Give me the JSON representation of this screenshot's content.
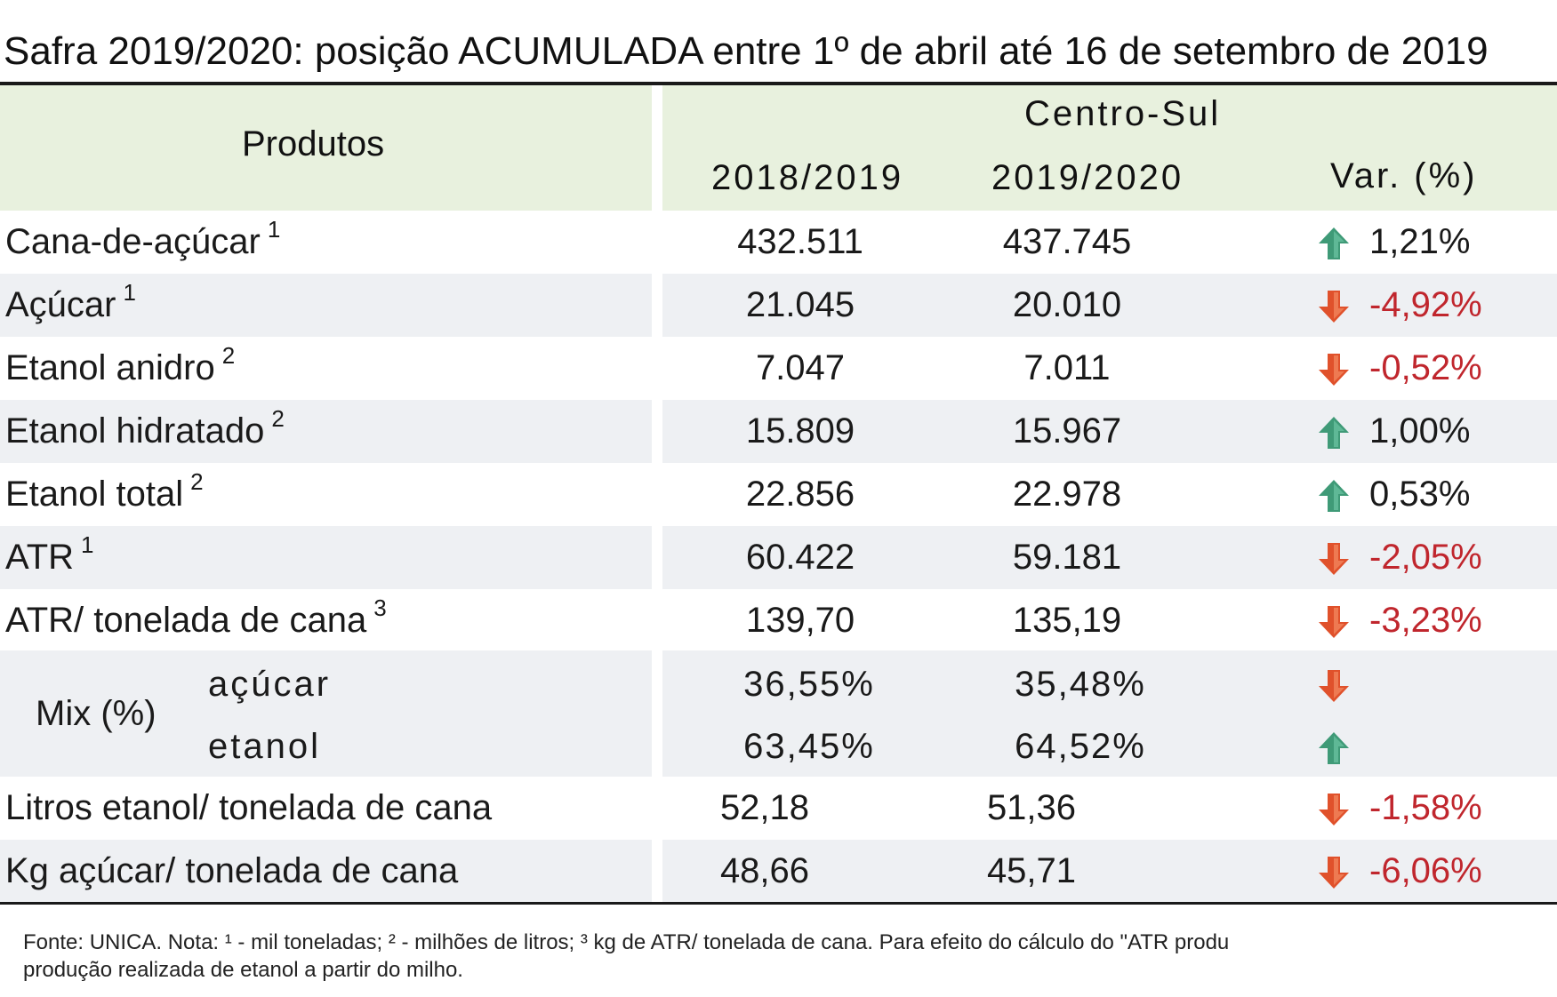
{
  "title": "Safra 2019/2020: posição ACUMULADA entre 1º de abril até 16 de setembro de 2019",
  "header": {
    "products": "Produtos",
    "region": "Centro-Sul",
    "col1": "2018/2019",
    "col2": "2019/2020",
    "col3": "Var. (%)"
  },
  "colors": {
    "header_bg": "#e8f1de",
    "row_shade": "#eef0f3",
    "up_arrow": "#3f9a77",
    "down_arrow": "#e0512b",
    "negative_text": "#c0262d"
  },
  "rows": [
    {
      "label": "Cana-de-açúcar",
      "note": "1",
      "v1": "432.511",
      "v2": "437.745",
      "trend": "up",
      "var": "1,21%"
    },
    {
      "label": "Açúcar",
      "note": "1",
      "v1": "21.045",
      "v2": "20.010",
      "trend": "down",
      "var": "-4,92%"
    },
    {
      "label": "Etanol anidro",
      "note": "2",
      "v1": "7.047",
      "v2": "7.011",
      "trend": "down",
      "var": "-0,52%"
    },
    {
      "label": "Etanol hidratado",
      "note": "2",
      "v1": "15.809",
      "v2": "15.967",
      "trend": "up",
      "var": "1,00%"
    },
    {
      "label": "Etanol total",
      "note": "2",
      "v1": "22.856",
      "v2": "22.978",
      "trend": "up",
      "var": "0,53%"
    },
    {
      "label": "ATR",
      "note": "1",
      "v1": "60.422",
      "v2": "59.181",
      "trend": "down",
      "var": "-2,05%"
    },
    {
      "label": "ATR/ tonelada de cana",
      "note": "3",
      "v1": "139,70",
      "v2": "135,19",
      "trend": "down",
      "var": "-3,23%"
    }
  ],
  "mix": {
    "label": "Mix (%)",
    "sugar": {
      "label": "açúcar",
      "v1": "36,55%",
      "v2": "35,48%",
      "trend": "down"
    },
    "ethanol": {
      "label": "etanol",
      "v1": "63,45%",
      "v2": "64,52%",
      "trend": "up"
    }
  },
  "rows_bottom": [
    {
      "label": "Litros etanol/ tonelada de cana",
      "v1": "52,18",
      "v2": "51,36",
      "trend": "down",
      "var": "-1,58%"
    },
    {
      "label": "Kg açúcar/ tonelada de cana",
      "v1": "48,66",
      "v2": "45,71",
      "trend": "down",
      "var": "-6,06%"
    }
  ],
  "footnote": {
    "line1": "Fonte: UNICA. Nota: ¹ - mil toneladas; ² - milhões de litros; ³   kg de ATR/ tonelada de cana. Para efeito do cálculo do \"ATR produ",
    "line2": "produção realizada de etanol a partir do milho."
  }
}
